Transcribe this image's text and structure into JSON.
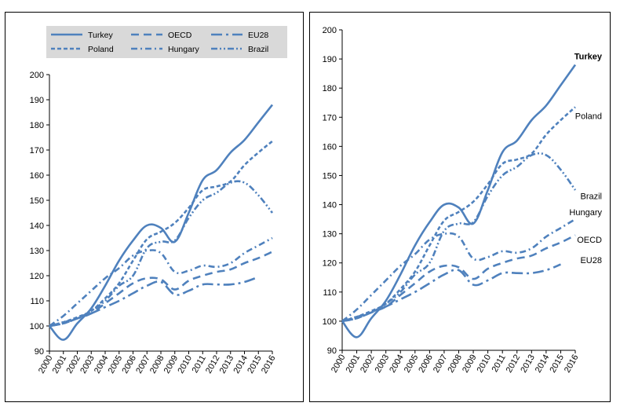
{
  "chart_data": [
    {
      "type": "line",
      "panel": "left",
      "title": "",
      "xlabel": "",
      "ylabel": "",
      "ylim": [
        90,
        200
      ],
      "yticks": [
        "90",
        "100",
        "110",
        "120",
        "130",
        "140",
        "150",
        "160",
        "170",
        "180",
        "190",
        "200"
      ],
      "x": [
        "2000",
        "2001",
        "2002",
        "2003",
        "2004",
        "2005",
        "2006",
        "2007",
        "2008",
        "2009",
        "2010",
        "2011",
        "2012",
        "2013",
        "2014",
        "2015",
        "2016"
      ],
      "legend": {
        "placement": "top",
        "entries": [
          "Turkey",
          "Poland",
          "OECD",
          "Hungary",
          "EU28",
          "Brazil"
        ]
      },
      "series": [
        {
          "name": "Turkey",
          "style": "solid",
          "values": [
            100,
            94.5,
            101,
            107,
            116,
            126,
            134,
            140,
            139,
            133.5,
            145,
            158,
            162,
            169,
            174,
            181,
            188
          ]
        },
        {
          "name": "Poland",
          "style": "dash",
          "values": [
            100,
            101.5,
            103.5,
            106,
            111,
            117,
            126,
            134.5,
            137.5,
            141,
            147,
            154,
            155.5,
            157.5,
            164,
            169,
            173.5
          ]
        },
        {
          "name": "OECD",
          "style": "longdash",
          "values": [
            100,
            101,
            103,
            105,
            109,
            113,
            117,
            119,
            118.5,
            114.5,
            118,
            120,
            121.5,
            122.5,
            125,
            127,
            129.5
          ]
        },
        {
          "name": "Hungary",
          "style": "dashdot",
          "values": [
            100,
            104,
            109,
            114,
            119,
            123,
            128,
            130,
            129,
            121.5,
            122,
            124,
            123.5,
            125,
            129,
            132,
            135
          ]
        },
        {
          "name": "EU28",
          "style": "longdashdot",
          "values": [
            100,
            101,
            103,
            105,
            107.5,
            110,
            113,
            116,
            117.5,
            112.5,
            114,
            116.5,
            116.5,
            116.5,
            117.5,
            119.5,
            null
          ]
        },
        {
          "name": "Brazil",
          "style": "dashdotdot",
          "values": [
            100,
            101.5,
            103,
            106,
            110,
            116,
            120,
            131,
            133.5,
            134,
            143,
            150,
            153,
            157,
            157,
            152,
            145
          ]
        }
      ]
    },
    {
      "type": "line",
      "panel": "right",
      "title": "",
      "xlabel": "",
      "ylabel": "",
      "ylim": [
        90,
        200
      ],
      "yticks": [
        "90",
        "100",
        "110",
        "120",
        "130",
        "140",
        "150",
        "160",
        "170",
        "180",
        "190",
        "200"
      ],
      "x": [
        "2000",
        "2001",
        "2002",
        "2003",
        "2004",
        "2005",
        "2006",
        "2007",
        "2008",
        "2009",
        "2010",
        "2011",
        "2012",
        "2013",
        "2014",
        "2015",
        "2016"
      ],
      "annotations": [
        {
          "text": "Turkey",
          "series": "Turkey",
          "y": 191,
          "bold": true
        },
        {
          "text": "Poland",
          "series": "Poland",
          "y": 170.5,
          "bold": false
        },
        {
          "text": "Brazil",
          "series": "Brazil",
          "y": 143,
          "bold": false
        },
        {
          "text": "Hungary",
          "series": "Hungary",
          "y": 137.5,
          "bold": false
        },
        {
          "text": "OECD",
          "series": "OECD",
          "y": 128,
          "bold": false
        },
        {
          "text": "EU28",
          "series": "EU28",
          "y": 121,
          "bold": false
        }
      ],
      "series": [
        {
          "name": "Turkey",
          "style": "solid",
          "values": [
            100,
            94.5,
            101,
            107,
            116,
            126,
            134,
            140,
            139,
            133.5,
            145,
            158,
            162,
            169,
            174,
            181,
            188
          ]
        },
        {
          "name": "Poland",
          "style": "dash",
          "values": [
            100,
            101.5,
            103.5,
            106,
            111,
            117,
            126,
            134.5,
            137.5,
            141,
            147,
            154,
            155.5,
            157.5,
            164,
            169,
            173.5
          ]
        },
        {
          "name": "OECD",
          "style": "longdash",
          "values": [
            100,
            101,
            103,
            105,
            109,
            113,
            117,
            119,
            118.5,
            114.5,
            118,
            120,
            121.5,
            122.5,
            125,
            127,
            129.5
          ]
        },
        {
          "name": "Hungary",
          "style": "dashdot",
          "values": [
            100,
            104,
            109,
            114,
            119,
            123,
            128,
            130,
            129,
            121.5,
            122,
            124,
            123.5,
            125,
            129,
            132,
            135
          ]
        },
        {
          "name": "EU28",
          "style": "longdashdot",
          "values": [
            100,
            101,
            103,
            105,
            107.5,
            110,
            113,
            116,
            117.5,
            112.5,
            114,
            116.5,
            116.5,
            116.5,
            117.5,
            119.5,
            null
          ]
        },
        {
          "name": "Brazil",
          "style": "dashdotdot",
          "values": [
            100,
            101.5,
            103,
            106,
            110,
            116,
            120,
            131,
            133.5,
            134,
            143,
            150,
            153,
            157,
            157,
            152,
            145
          ]
        }
      ]
    }
  ],
  "colors": {
    "line": "#4f81bd",
    "legend_bg": "#d9d9d9",
    "axis": "#000000"
  }
}
